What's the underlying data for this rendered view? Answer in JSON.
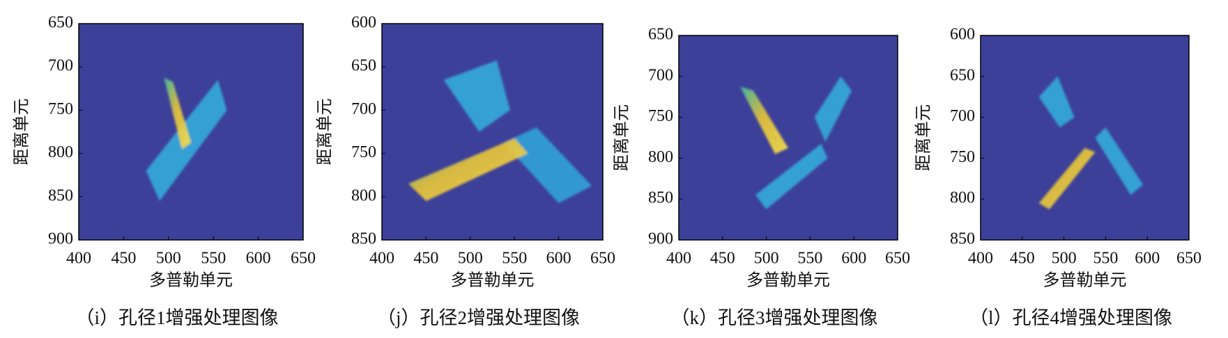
{
  "chart_data": [
    {
      "type": "image",
      "caption": "（i）孔径1增强处理图像",
      "xlabel": "多普勒单元",
      "ylabel": "距离单元",
      "xlim": [
        400,
        650
      ],
      "xticks": [
        400,
        450,
        500,
        550,
        600,
        650
      ],
      "ylim": [
        650,
        900
      ],
      "yticks": [
        650,
        700,
        750,
        800,
        850,
        900
      ],
      "y_reversed": true,
      "color": "#3d4099"
    },
    {
      "type": "image",
      "caption": "（j）孔径2增强处理图像",
      "xlabel": "多普勒单元",
      "ylabel": "距离单元",
      "xlim": [
        400,
        650
      ],
      "xticks": [
        400,
        450,
        500,
        550,
        600,
        650
      ],
      "ylim": [
        600,
        850
      ],
      "yticks": [
        600,
        650,
        700,
        750,
        800,
        850
      ],
      "y_reversed": true,
      "color": "#3d4099"
    },
    {
      "type": "image",
      "caption": "（k）孔径3增强处理图像",
      "xlabel": "多普勒单元",
      "ylabel": "距离单元",
      "xlim": [
        400,
        650
      ],
      "xticks": [
        400,
        450,
        500,
        550,
        600,
        650
      ],
      "ylim": [
        650,
        900
      ],
      "yticks": [
        650,
        700,
        750,
        800,
        850,
        900
      ],
      "y_reversed": true,
      "color": "#3d4099"
    },
    {
      "type": "image",
      "caption": "（l）孔径4增强处理图像",
      "xlabel": "多普勒单元",
      "ylabel": "距离单元",
      "xlim": [
        400,
        650
      ],
      "xticks": [
        400,
        450,
        500,
        550,
        600,
        650
      ],
      "ylim": [
        600,
        850
      ],
      "yticks": [
        600,
        650,
        700,
        750,
        800,
        850
      ],
      "y_reversed": true,
      "color": "#3d4099"
    }
  ]
}
